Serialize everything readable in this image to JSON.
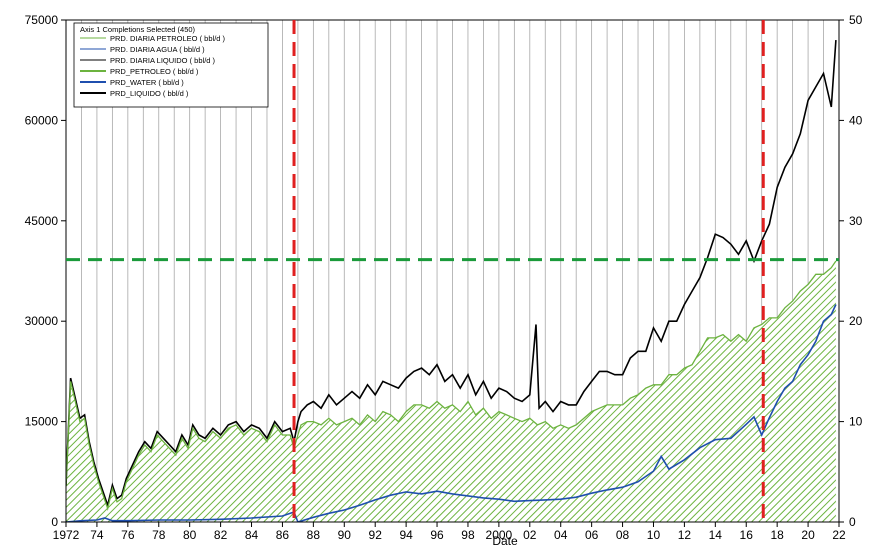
{
  "chart_data": {
    "type": "line",
    "xlabel": "Date",
    "ylim_left": [
      0,
      75000
    ],
    "ylim_right": [
      0,
      50
    ],
    "yticks_left": [
      "0",
      "15000",
      "30000",
      "45000",
      "60000",
      "75000"
    ],
    "yticks_right": [
      "0",
      "10",
      "20",
      "30",
      "40",
      "50"
    ],
    "xlim": [
      1972,
      2022
    ],
    "xticks": [
      "1972",
      "74",
      "76",
      "78",
      "80",
      "82",
      "84",
      "86",
      "88",
      "90",
      "92",
      "94",
      "96",
      "98",
      "2000",
      "02",
      "04",
      "06",
      "08",
      "10",
      "12",
      "14",
      "16",
      "18",
      "20",
      "22"
    ],
    "grid": "vertical-yearly",
    "legend": {
      "placement": "top-left",
      "title": "Axis 1  Completions Selected (450)",
      "entries": [
        {
          "label": "PRD. DIARIA PETROLEO ( bbl/d )",
          "color": "#6cb33f",
          "width": 1
        },
        {
          "label": "PRD. DIARIA AGUA ( bbl/d )",
          "color": "#1f4fae",
          "width": 1
        },
        {
          "label": "PRD. DIARIA LIQUIDO ( bbl/d )",
          "color": "#000000",
          "width": 1
        },
        {
          "label": "PRD_PETROLEO ( bbl/d )",
          "color": "#6cb33f",
          "width": 2
        },
        {
          "label": "PRD_WATER ( bbl/d )",
          "color": "#1f4fae",
          "width": 2
        },
        {
          "label": "PRD_LIQUIDO ( bbl/d )",
          "color": "#000000",
          "width": 2
        }
      ]
    },
    "reference_lines": {
      "vertical": [
        1986.75,
        2017.1
      ],
      "vertical_color": "#e02020",
      "horizontal": [
        39200
      ],
      "horizontal_color": "#1a9a3a"
    },
    "series": [
      {
        "name": "PRD_LIQUIDO ( bbl/d )",
        "color": "#000000",
        "x": [
          1972.0,
          1972.3,
          1972.6,
          1972.9,
          1973.2,
          1973.5,
          1973.8,
          1974.1,
          1974.4,
          1974.7,
          1975.0,
          1975.3,
          1975.6,
          1975.9,
          1976.3,
          1976.7,
          1977.1,
          1977.5,
          1977.9,
          1978.3,
          1978.7,
          1979.1,
          1979.5,
          1979.9,
          1980.2,
          1980.6,
          1981.0,
          1981.5,
          1982.0,
          1982.5,
          1983.0,
          1983.5,
          1984.0,
          1984.5,
          1985.0,
          1985.5,
          1986.0,
          1986.5,
          1986.75,
          1987.0,
          1987.2,
          1987.6,
          1988.0,
          1988.5,
          1989.0,
          1989.5,
          1990.0,
          1990.5,
          1991.0,
          1991.5,
          1992.0,
          1992.5,
          1993.0,
          1993.5,
          1994.0,
          1994.5,
          1995.0,
          1995.5,
          1996.0,
          1996.5,
          1997.0,
          1997.5,
          1998.0,
          1998.5,
          1999.0,
          1999.5,
          2000.0,
          2000.5,
          2001.0,
          2001.5,
          2002.0,
          2002.4,
          2002.6,
          2003.0,
          2003.5,
          2004.0,
          2004.5,
          2005.0,
          2005.5,
          2006.0,
          2006.5,
          2007.0,
          2007.5,
          2008.0,
          2008.5,
          2009.0,
          2009.5,
          2010.0,
          2010.5,
          2011.0,
          2011.5,
          2012.0,
          2012.5,
          2013.0,
          2013.5,
          2014.0,
          2014.5,
          2015.0,
          2015.5,
          2016.0,
          2016.5,
          2017.0,
          2017.5,
          2018.0,
          2018.5,
          2019.0,
          2019.5,
          2020.0,
          2020.5,
          2021.0,
          2021.5,
          2021.8
        ],
        "y": [
          5500,
          21500,
          18500,
          15500,
          16000,
          12000,
          9000,
          6500,
          4500,
          2500,
          5500,
          3500,
          4000,
          6500,
          8500,
          10500,
          12000,
          11000,
          13500,
          12500,
          11500,
          10500,
          13000,
          11500,
          14500,
          13000,
          12500,
          14000,
          13000,
          14500,
          15000,
          13500,
          14500,
          14000,
          12500,
          15000,
          13500,
          14000,
          12000,
          15000,
          16500,
          17500,
          18000,
          17000,
          19000,
          17500,
          18500,
          19500,
          18500,
          20500,
          19000,
          21000,
          20500,
          20000,
          21500,
          22500,
          23000,
          22000,
          23500,
          21000,
          22000,
          20000,
          22000,
          19000,
          21000,
          18500,
          20000,
          19500,
          18500,
          18000,
          19000,
          29500,
          17000,
          18000,
          16500,
          18000,
          17500,
          17500,
          19500,
          21000,
          22500,
          22500,
          22000,
          22000,
          24500,
          25500,
          25500,
          29000,
          27000,
          30000,
          30000,
          32500,
          34500,
          36500,
          39500,
          43000,
          42500,
          41500,
          40000,
          42000,
          39000,
          42000,
          44500,
          50000,
          53000,
          55000,
          58000,
          63000,
          65000,
          67000,
          62000,
          72000
        ]
      },
      {
        "name": "PRD_PETROLEO ( bbl/d )",
        "color": "#6cb33f",
        "x": [
          1972.0,
          1972.3,
          1972.6,
          1972.9,
          1973.2,
          1973.5,
          1973.8,
          1974.1,
          1974.4,
          1974.7,
          1975.0,
          1975.3,
          1975.6,
          1975.9,
          1976.3,
          1976.7,
          1977.1,
          1977.5,
          1977.9,
          1978.3,
          1978.7,
          1979.1,
          1979.5,
          1979.9,
          1980.2,
          1980.6,
          1981.0,
          1981.5,
          1982.0,
          1982.5,
          1983.0,
          1983.5,
          1984.0,
          1984.5,
          1985.0,
          1985.5,
          1986.0,
          1986.5,
          1986.75,
          1987.0,
          1987.2,
          1987.6,
          1988.0,
          1988.5,
          1989.0,
          1989.5,
          1990.0,
          1990.5,
          1991.0,
          1991.5,
          1992.0,
          1992.5,
          1993.0,
          1993.5,
          1994.0,
          1994.5,
          1995.0,
          1995.5,
          1996.0,
          1996.5,
          1997.0,
          1997.5,
          1998.0,
          1998.5,
          1999.0,
          1999.5,
          2000.0,
          2000.5,
          2001.0,
          2001.5,
          2002.0,
          2002.5,
          2003.0,
          2003.5,
          2004.0,
          2004.5,
          2005.0,
          2005.5,
          2006.0,
          2006.5,
          2007.0,
          2007.5,
          2008.0,
          2008.5,
          2009.0,
          2009.5,
          2010.0,
          2010.5,
          2011.0,
          2011.5,
          2012.0,
          2012.5,
          2013.0,
          2013.5,
          2014.0,
          2014.5,
          2015.0,
          2015.5,
          2016.0,
          2016.5,
          2017.0,
          2017.5,
          2018.0,
          2018.5,
          2019.0,
          2019.5,
          2020.0,
          2020.5,
          2021.0,
          2021.5,
          2021.8
        ],
        "y": [
          5500,
          21000,
          18000,
          15000,
          15500,
          11500,
          8500,
          6000,
          4000,
          2000,
          5000,
          3000,
          3500,
          6000,
          8000,
          10000,
          11500,
          10500,
          13000,
          12000,
          11000,
          10000,
          12500,
          11000,
          14000,
          12500,
          12000,
          13500,
          12500,
          14000,
          14500,
          13000,
          14000,
          13500,
          12000,
          14500,
          13000,
          13000,
          11000,
          13000,
          14500,
          15000,
          15000,
          14500,
          15500,
          14500,
          15000,
          15500,
          14500,
          16000,
          15000,
          16500,
          16000,
          15000,
          16500,
          17500,
          17500,
          17000,
          18000,
          17000,
          17500,
          16500,
          18000,
          16000,
          17000,
          15500,
          16500,
          16000,
          15500,
          15000,
          15500,
          14500,
          15000,
          14000,
          14500,
          14000,
          14500,
          15500,
          16500,
          17000,
          17500,
          17500,
          17500,
          18500,
          19000,
          20000,
          20500,
          20500,
          22000,
          22000,
          23000,
          23500,
          25500,
          27500,
          27500,
          28000,
          27000,
          28000,
          27000,
          29000,
          29500,
          30500,
          30500,
          32000,
          33000,
          34500,
          35500,
          37000,
          37000,
          38000,
          39000
        ]
      },
      {
        "name": "PRD_WATER ( bbl/d )",
        "color": "#1f4fae",
        "x": [
          1972.0,
          1973.0,
          1974.0,
          1974.5,
          1975.0,
          1976.0,
          1978.0,
          1980.0,
          1982.0,
          1984.0,
          1986.0,
          1986.75,
          1987.0,
          1988.0,
          1989.0,
          1990.0,
          1991.0,
          1992.0,
          1993.0,
          1994.0,
          1995.0,
          1996.0,
          1997.0,
          1998.0,
          1999.0,
          2000.0,
          2001.0,
          2002.0,
          2003.0,
          2004.0,
          2005.0,
          2006.0,
          2007.0,
          2008.0,
          2009.0,
          2010.0,
          2010.5,
          2011.0,
          2012.0,
          2013.0,
          2014.0,
          2015.0,
          2016.0,
          2016.5,
          2017.0,
          2017.5,
          2018.0,
          2018.5,
          2019.0,
          2019.5,
          2020.0,
          2020.5,
          2021.0,
          2021.5,
          2021.8
        ],
        "y": [
          0,
          200,
          300,
          600,
          200,
          200,
          300,
          300,
          400,
          600,
          900,
          1500,
          0,
          700,
          1300,
          1800,
          2500,
          3300,
          4000,
          4500,
          4200,
          4600,
          4200,
          3900,
          3600,
          3400,
          3100,
          3200,
          3300,
          3400,
          3700,
          4300,
          4800,
          5200,
          6000,
          7600,
          9800,
          7900,
          9300,
          11100,
          12300,
          12500,
          14600,
          15700,
          13000,
          15600,
          18000,
          20000,
          21000,
          23500,
          25000,
          27000,
          30000,
          31000,
          32500
        ]
      }
    ]
  }
}
